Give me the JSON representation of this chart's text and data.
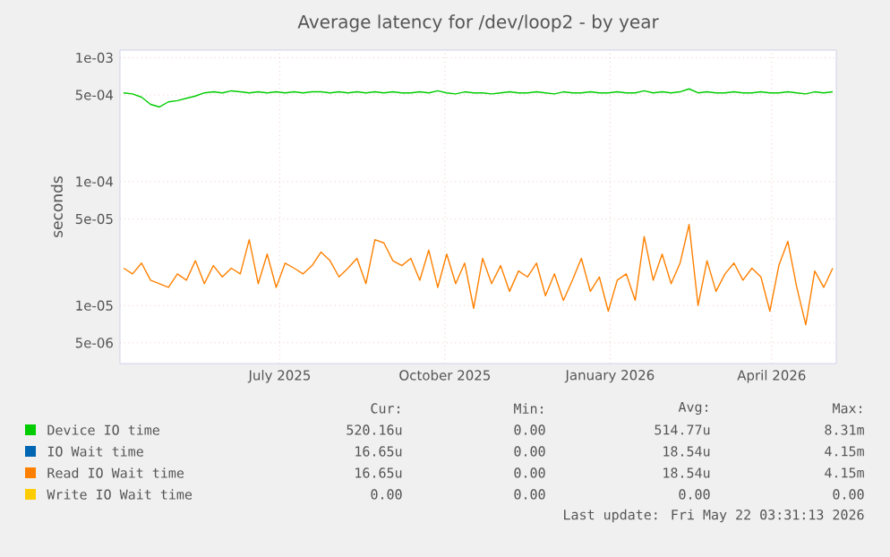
{
  "chart_data": {
    "type": "line",
    "title": "Average latency for /dev/loop2 - by year",
    "ylabel": "seconds",
    "log": "y",
    "grid": true,
    "legend": "bottom",
    "xlim": [
      "2025-04-18",
      "2026-05-22"
    ],
    "xticks": [
      {
        "value": "2025-07-16",
        "label": "July 2025"
      },
      {
        "value": "2025-10-16",
        "label": "October 2025"
      },
      {
        "value": "2026-01-16",
        "label": "January 2026"
      },
      {
        "value": "2026-04-16",
        "label": "April 2026"
      }
    ],
    "ylim": [
      3.4e-06,
      0.00115
    ],
    "yticks": [
      {
        "value": 5e-06,
        "label": "5e-06"
      },
      {
        "value": 1e-05,
        "label": "1e-05"
      },
      {
        "value": 5e-05,
        "label": "5e-05"
      },
      {
        "value": 0.0001,
        "label": "1e-04"
      },
      {
        "value": 0.0005,
        "label": "5e-04"
      },
      {
        "value": 0.001,
        "label": "1e-03"
      }
    ],
    "x": [
      "2025-04-20",
      "2025-04-25",
      "2025-04-30",
      "2025-05-05",
      "2025-05-10",
      "2025-05-15",
      "2025-05-20",
      "2025-05-25",
      "2025-05-30",
      "2025-06-04",
      "2025-06-09",
      "2025-06-14",
      "2025-06-19",
      "2025-06-24",
      "2025-06-29",
      "2025-07-04",
      "2025-07-09",
      "2025-07-14",
      "2025-07-19",
      "2025-07-24",
      "2025-07-29",
      "2025-08-03",
      "2025-08-08",
      "2025-08-13",
      "2025-08-18",
      "2025-08-23",
      "2025-08-28",
      "2025-09-02",
      "2025-09-07",
      "2025-09-12",
      "2025-09-17",
      "2025-09-22",
      "2025-09-27",
      "2025-10-02",
      "2025-10-07",
      "2025-10-12",
      "2025-10-17",
      "2025-10-22",
      "2025-10-27",
      "2025-11-01",
      "2025-11-06",
      "2025-11-11",
      "2025-11-16",
      "2025-11-21",
      "2025-11-26",
      "2025-12-01",
      "2025-12-06",
      "2025-12-11",
      "2025-12-16",
      "2025-12-21",
      "2025-12-26",
      "2025-12-31",
      "2026-01-05",
      "2026-01-10",
      "2026-01-15",
      "2026-01-20",
      "2026-01-25",
      "2026-01-30",
      "2026-02-04",
      "2026-02-09",
      "2026-02-14",
      "2026-02-19",
      "2026-02-24",
      "2026-03-01",
      "2026-03-06",
      "2026-03-11",
      "2026-03-16",
      "2026-03-21",
      "2026-03-26",
      "2026-03-31",
      "2026-04-05",
      "2026-04-10",
      "2026-04-15",
      "2026-04-20",
      "2026-04-25",
      "2026-04-30",
      "2026-05-05",
      "2026-05-10",
      "2026-05-15",
      "2026-05-20"
    ],
    "series": [
      {
        "name": "Device IO time",
        "color": "#00cc00",
        "values": [
          0.00052,
          0.00051,
          0.00048,
          0.00042,
          0.0004,
          0.00044,
          0.00045,
          0.00047,
          0.00049,
          0.00052,
          0.00053,
          0.00052,
          0.00054,
          0.00053,
          0.00052,
          0.00053,
          0.00052,
          0.00053,
          0.00052,
          0.00053,
          0.00052,
          0.00053,
          0.00053,
          0.00052,
          0.00053,
          0.00052,
          0.00053,
          0.00052,
          0.00053,
          0.00052,
          0.00053,
          0.00052,
          0.00052,
          0.00053,
          0.00052,
          0.00054,
          0.00052,
          0.00051,
          0.00053,
          0.00052,
          0.00052,
          0.00051,
          0.00052,
          0.00053,
          0.00052,
          0.00052,
          0.00053,
          0.00052,
          0.00051,
          0.00053,
          0.00052,
          0.00052,
          0.00053,
          0.00052,
          0.00052,
          0.00053,
          0.00052,
          0.00052,
          0.00054,
          0.00052,
          0.00053,
          0.00052,
          0.00053,
          0.00056,
          0.00052,
          0.00053,
          0.00052,
          0.00052,
          0.00053,
          0.00052,
          0.00052,
          0.00053,
          0.00052,
          0.00052,
          0.00053,
          0.00052,
          0.00051,
          0.00053,
          0.00052,
          0.00053
        ]
      },
      {
        "name": "IO Wait time",
        "color": "#0066b3",
        "values": [
          null,
          null,
          null,
          null,
          null,
          null,
          null,
          null,
          null,
          null,
          null,
          null,
          null,
          null,
          null,
          null,
          null,
          null,
          null,
          null,
          null,
          null,
          null,
          null,
          null,
          null,
          null,
          null,
          null,
          null,
          null,
          null,
          null,
          null,
          null,
          null,
          null,
          null,
          null,
          null,
          null,
          null,
          null,
          null,
          null,
          null,
          null,
          null,
          null,
          null,
          null,
          null,
          null,
          null,
          null,
          null,
          null,
          null,
          null,
          null,
          null,
          null,
          null,
          null,
          null,
          null,
          null,
          null,
          null,
          null,
          null,
          null,
          null,
          null,
          null,
          null,
          null,
          null,
          null,
          null
        ]
      },
      {
        "name": "Read IO Wait time",
        "color": "#ff8000",
        "values": [
          2e-05,
          1.8e-05,
          2.2e-05,
          1.6e-05,
          1.5e-05,
          1.4e-05,
          1.8e-05,
          1.6e-05,
          2.3e-05,
          1.5e-05,
          2.1e-05,
          1.7e-05,
          2e-05,
          1.8e-05,
          3.4e-05,
          1.5e-05,
          2.6e-05,
          1.4e-05,
          2.2e-05,
          2e-05,
          1.8e-05,
          2.1e-05,
          2.7e-05,
          2.3e-05,
          1.7e-05,
          2e-05,
          2.4e-05,
          1.5e-05,
          3.4e-05,
          3.2e-05,
          2.3e-05,
          2.1e-05,
          2.4e-05,
          1.6e-05,
          2.8e-05,
          1.4e-05,
          2.6e-05,
          1.5e-05,
          2.2e-05,
          9.5e-06,
          2.4e-05,
          1.5e-05,
          2.1e-05,
          1.3e-05,
          1.9e-05,
          1.7e-05,
          2.2e-05,
          1.2e-05,
          1.8e-05,
          1.1e-05,
          1.6e-05,
          2.4e-05,
          1.3e-05,
          1.7e-05,
          9e-06,
          1.6e-05,
          1.8e-05,
          1.1e-05,
          3.6e-05,
          1.6e-05,
          2.6e-05,
          1.5e-05,
          2.2e-05,
          4.5e-05,
          1e-05,
          2.3e-05,
          1.3e-05,
          1.8e-05,
          2.2e-05,
          1.6e-05,
          2e-05,
          1.7e-05,
          9e-06,
          2.1e-05,
          3.3e-05,
          1.4e-05,
          7e-06,
          1.9e-05,
          1.4e-05,
          2e-05
        ]
      },
      {
        "name": "Write IO Wait time",
        "color": "#ffcc00",
        "values": [
          null,
          null,
          null,
          null,
          null,
          null,
          null,
          null,
          null,
          null,
          null,
          null,
          null,
          null,
          null,
          null,
          null,
          null,
          null,
          null,
          null,
          null,
          null,
          null,
          null,
          null,
          null,
          null,
          null,
          null,
          null,
          null,
          null,
          null,
          null,
          null,
          null,
          null,
          null,
          null,
          null,
          null,
          null,
          null,
          null,
          null,
          null,
          null,
          null,
          null,
          null,
          null,
          null,
          null,
          null,
          null,
          null,
          null,
          null,
          null,
          null,
          null,
          null,
          null,
          null,
          null,
          null,
          null,
          null,
          null,
          null,
          null,
          null,
          null,
          null,
          null,
          null,
          null,
          null,
          null
        ]
      }
    ],
    "annotations": [
      "Cur:",
      "Min:",
      "Avg:",
      "Max:",
      "520.16u",
      "0.00",
      "514.77u",
      "8.31m",
      "16.65u",
      "0.00",
      "18.54u",
      "4.15m",
      "16.65u",
      "0.00",
      "18.54u",
      "4.15m",
      "0.00",
      "0.00",
      "0.00",
      "0.00",
      "Last update: Fri May 22 03:31:13 2026"
    ]
  }
}
